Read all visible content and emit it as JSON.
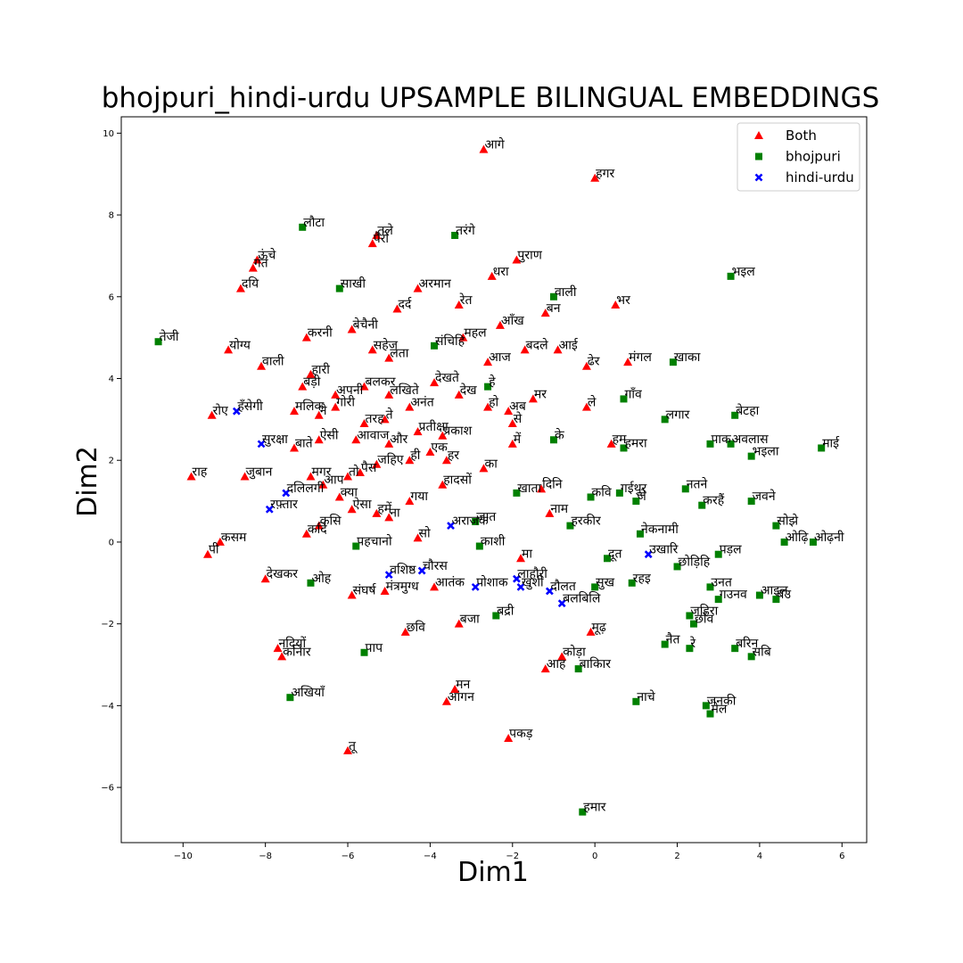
{
  "chart_data": {
    "type": "scatter",
    "title": "bhojpuri_hindi-urdu UPSAMPLE BILINGUAL EMBEDDINGS",
    "xlabel": "Dim1",
    "ylabel": "Dim2",
    "xlim": [
      -11.5,
      6.6
    ],
    "ylim": [
      -7.35,
      10.4
    ],
    "xticks": [
      -10,
      -8,
      -6,
      -4,
      -2,
      0,
      2,
      4,
      6
    ],
    "yticks": [
      -6,
      -4,
      -2,
      0,
      2,
      4,
      6,
      8,
      10
    ],
    "legend_position": "top-right",
    "grid": false,
    "series": [
      {
        "name": "Both",
        "marker": "triangle",
        "color": "#ff0000",
        "points": [
          {
            "x": -2.7,
            "y": 9.6,
            "label": "आगे"
          },
          {
            "x": 0.0,
            "y": 8.9,
            "label": "हगर"
          },
          {
            "x": -5.3,
            "y": 7.5,
            "label": "तले"
          },
          {
            "x": -5.4,
            "y": 7.3,
            "label": "पैरों"
          },
          {
            "x": -8.2,
            "y": 6.9,
            "label": "ऊंचे"
          },
          {
            "x": -8.3,
            "y": 6.7,
            "label": "गंत"
          },
          {
            "x": -8.6,
            "y": 6.2,
            "label": "दयि"
          },
          {
            "x": -4.3,
            "y": 6.2,
            "label": "अरमान"
          },
          {
            "x": -2.5,
            "y": 6.5,
            "label": "धरा"
          },
          {
            "x": -1.9,
            "y": 6.9,
            "label": "पुराण"
          },
          {
            "x": -4.8,
            "y": 5.7,
            "label": "दर्द"
          },
          {
            "x": -3.3,
            "y": 5.8,
            "label": "रेत"
          },
          {
            "x": -1.2,
            "y": 5.6,
            "label": "बन"
          },
          {
            "x": 0.5,
            "y": 5.8,
            "label": "भर"
          },
          {
            "x": -7.0,
            "y": 5.0,
            "label": "करनी"
          },
          {
            "x": -5.9,
            "y": 5.2,
            "label": "बेचैनी"
          },
          {
            "x": -2.3,
            "y": 5.3,
            "label": "आँख"
          },
          {
            "x": -3.2,
            "y": 5.0,
            "label": "महल"
          },
          {
            "x": -8.9,
            "y": 4.7,
            "label": "योग्य"
          },
          {
            "x": -8.1,
            "y": 4.3,
            "label": "वाली"
          },
          {
            "x": -5.4,
            "y": 4.7,
            "label": "सहेज"
          },
          {
            "x": -5.0,
            "y": 4.5,
            "label": "लता"
          },
          {
            "x": -2.6,
            "y": 4.4,
            "label": "आज"
          },
          {
            "x": -1.7,
            "y": 4.7,
            "label": "बदले"
          },
          {
            "x": -0.9,
            "y": 4.7,
            "label": "आई"
          },
          {
            "x": -0.2,
            "y": 4.3,
            "label": "ढेर"
          },
          {
            "x": 0.8,
            "y": 4.4,
            "label": "मंगल"
          },
          {
            "x": -6.9,
            "y": 4.1,
            "label": "हारी"
          },
          {
            "x": -7.1,
            "y": 3.8,
            "label": "बड़ी"
          },
          {
            "x": -5.6,
            "y": 3.8,
            "label": "बलकर"
          },
          {
            "x": -6.3,
            "y": 3.6,
            "label": "अपनी"
          },
          {
            "x": -5.0,
            "y": 3.6,
            "label": "लखिते"
          },
          {
            "x": -3.9,
            "y": 3.9,
            "label": "देखते"
          },
          {
            "x": -3.3,
            "y": 3.6,
            "label": "देख"
          },
          {
            "x": -1.5,
            "y": 3.5,
            "label": "मर"
          },
          {
            "x": -9.3,
            "y": 3.1,
            "label": "रोए"
          },
          {
            "x": -7.3,
            "y": 3.2,
            "label": "मलिक"
          },
          {
            "x": -6.7,
            "y": 3.1,
            "label": "ने"
          },
          {
            "x": -6.3,
            "y": 3.3,
            "label": "गोरी"
          },
          {
            "x": -5.1,
            "y": 3.0,
            "label": "ते"
          },
          {
            "x": -5.6,
            "y": 2.9,
            "label": "तरह"
          },
          {
            "x": -4.5,
            "y": 3.3,
            "label": "अनंत"
          },
          {
            "x": -2.6,
            "y": 3.3,
            "label": "हो"
          },
          {
            "x": -2.1,
            "y": 3.2,
            "label": "अब"
          },
          {
            "x": -2.0,
            "y": 2.9,
            "label": "से"
          },
          {
            "x": -0.2,
            "y": 3.3,
            "label": "ले"
          },
          {
            "x": -6.7,
            "y": 2.5,
            "label": "ऐसी"
          },
          {
            "x": -7.3,
            "y": 2.3,
            "label": "बाते"
          },
          {
            "x": -5.8,
            "y": 2.5,
            "label": "आवाज"
          },
          {
            "x": -5.0,
            "y": 2.4,
            "label": "और"
          },
          {
            "x": -4.3,
            "y": 2.7,
            "label": "प्रतीक्षा"
          },
          {
            "x": -3.7,
            "y": 2.6,
            "label": "प्रकाश"
          },
          {
            "x": -4.0,
            "y": 2.2,
            "label": "एक"
          },
          {
            "x": -2.0,
            "y": 2.4,
            "label": "में"
          },
          {
            "x": 0.4,
            "y": 2.4,
            "label": "हम"
          },
          {
            "x": -5.3,
            "y": 1.9,
            "label": "जहिए"
          },
          {
            "x": -4.5,
            "y": 2.0,
            "label": "ही"
          },
          {
            "x": -3.6,
            "y": 2.0,
            "label": "हर"
          },
          {
            "x": -2.7,
            "y": 1.8,
            "label": "का"
          },
          {
            "x": -9.8,
            "y": 1.6,
            "label": "राह"
          },
          {
            "x": -8.5,
            "y": 1.6,
            "label": "जुबान"
          },
          {
            "x": -6.9,
            "y": 1.6,
            "label": "मगर"
          },
          {
            "x": -6.6,
            "y": 1.4,
            "label": "आप"
          },
          {
            "x": -6.0,
            "y": 1.6,
            "label": "तो"
          },
          {
            "x": -5.7,
            "y": 1.7,
            "label": "पैस"
          },
          {
            "x": -3.7,
            "y": 1.4,
            "label": "हादसों"
          },
          {
            "x": -1.3,
            "y": 1.3,
            "label": "दिनि"
          },
          {
            "x": -6.2,
            "y": 1.1,
            "label": "क्या"
          },
          {
            "x": -5.9,
            "y": 0.8,
            "label": "ऐसा"
          },
          {
            "x": -5.3,
            "y": 0.7,
            "label": "हमें"
          },
          {
            "x": -5.0,
            "y": 0.6,
            "label": "ना"
          },
          {
            "x": -4.5,
            "y": 1.0,
            "label": "गया"
          },
          {
            "x": -1.1,
            "y": 0.7,
            "label": "नाम"
          },
          {
            "x": -9.1,
            "y": 0.0,
            "label": "कसम"
          },
          {
            "x": -9.4,
            "y": -0.3,
            "label": "पी"
          },
          {
            "x": -6.7,
            "y": 0.4,
            "label": "कसि"
          },
          {
            "x": -7.0,
            "y": 0.2,
            "label": "कदि"
          },
          {
            "x": -4.3,
            "y": 0.1,
            "label": "सो"
          },
          {
            "x": -1.8,
            "y": -0.4,
            "label": "मा"
          },
          {
            "x": -8.0,
            "y": -0.9,
            "label": "देखकर"
          },
          {
            "x": -5.9,
            "y": -1.3,
            "label": "संघर्ष"
          },
          {
            "x": -5.1,
            "y": -1.2,
            "label": "मंत्रमुग्ध"
          },
          {
            "x": -3.9,
            "y": -1.1,
            "label": "आतंक"
          },
          {
            "x": -4.6,
            "y": -2.2,
            "label": "छवि"
          },
          {
            "x": -3.3,
            "y": -2.0,
            "label": "बजा"
          },
          {
            "x": -0.1,
            "y": -2.2,
            "label": "मूढ़"
          },
          {
            "x": -7.7,
            "y": -2.6,
            "label": "नदियों"
          },
          {
            "x": -7.6,
            "y": -2.8,
            "label": "कनिार"
          },
          {
            "x": -1.2,
            "y": -3.1,
            "label": "आह"
          },
          {
            "x": -0.8,
            "y": -2.8,
            "label": "कोड़ा"
          },
          {
            "x": -3.4,
            "y": -3.6,
            "label": "मन"
          },
          {
            "x": -3.6,
            "y": -3.9,
            "label": "आंगन"
          },
          {
            "x": -2.1,
            "y": -4.8,
            "label": "पकड़"
          },
          {
            "x": -6.0,
            "y": -5.1,
            "label": "तू"
          }
        ]
      },
      {
        "name": "bhojpuri",
        "marker": "square",
        "color": "#008000",
        "points": [
          {
            "x": -7.1,
            "y": 7.7,
            "label": "लौटा"
          },
          {
            "x": -3.4,
            "y": 7.5,
            "label": "तरंगे"
          },
          {
            "x": -6.2,
            "y": 6.2,
            "label": "साखी"
          },
          {
            "x": -1.0,
            "y": 6.0,
            "label": "वाली"
          },
          {
            "x": 3.3,
            "y": 6.5,
            "label": "भइल"
          },
          {
            "x": -10.6,
            "y": 4.9,
            "label": "तेजी"
          },
          {
            "x": -3.9,
            "y": 4.8,
            "label": "संचिहि"
          },
          {
            "x": 1.9,
            "y": 4.4,
            "label": "खाका"
          },
          {
            "x": -2.6,
            "y": 3.8,
            "label": "हे"
          },
          {
            "x": 0.7,
            "y": 3.5,
            "label": "गाँव"
          },
          {
            "x": 1.7,
            "y": 3.0,
            "label": "लगार"
          },
          {
            "x": 3.4,
            "y": 3.1,
            "label": "बेटहा"
          },
          {
            "x": -1.0,
            "y": 2.5,
            "label": "के"
          },
          {
            "x": 0.7,
            "y": 2.3,
            "label": "हमरा"
          },
          {
            "x": 2.8,
            "y": 2.4,
            "label": "पाक"
          },
          {
            "x": 3.3,
            "y": 2.4,
            "label": "अवलास"
          },
          {
            "x": 3.8,
            "y": 2.1,
            "label": "भइला"
          },
          {
            "x": 5.5,
            "y": 2.3,
            "label": "माई"
          },
          {
            "x": -1.9,
            "y": 1.2,
            "label": "खाता"
          },
          {
            "x": -0.1,
            "y": 1.1,
            "label": "कवि"
          },
          {
            "x": 0.6,
            "y": 1.2,
            "label": "गईथुर"
          },
          {
            "x": 2.2,
            "y": 1.3,
            "label": "नतने"
          },
          {
            "x": 2.6,
            "y": 0.9,
            "label": "करहैं"
          },
          {
            "x": 3.8,
            "y": 1.0,
            "label": "जवने"
          },
          {
            "x": 1.0,
            "y": 1.0,
            "label": "जे"
          },
          {
            "x": -2.9,
            "y": 0.5,
            "label": "जात"
          },
          {
            "x": -0.6,
            "y": 0.4,
            "label": "हरकीर"
          },
          {
            "x": 1.1,
            "y": 0.2,
            "label": "नेकनामी"
          },
          {
            "x": 4.4,
            "y": 0.4,
            "label": "सोझे"
          },
          {
            "x": 4.6,
            "y": 0.0,
            "label": "ओढ़ि"
          },
          {
            "x": 5.3,
            "y": 0.0,
            "label": "ओढ़नी"
          },
          {
            "x": -5.8,
            "y": -0.1,
            "label": "पहचानो"
          },
          {
            "x": -2.8,
            "y": -0.1,
            "label": "काशी"
          },
          {
            "x": 0.3,
            "y": -0.4,
            "label": "दूत"
          },
          {
            "x": 2.0,
            "y": -0.6,
            "label": "छोड़िहि"
          },
          {
            "x": 3.0,
            "y": -0.3,
            "label": "पड़ल"
          },
          {
            "x": -6.9,
            "y": -1.0,
            "label": "ओह"
          },
          {
            "x": 0.0,
            "y": -1.1,
            "label": "सुख"
          },
          {
            "x": 0.9,
            "y": -1.0,
            "label": "रहइ"
          },
          {
            "x": 2.8,
            "y": -1.1,
            "label": "उनत"
          },
          {
            "x": 3.0,
            "y": -1.4,
            "label": "गउनव"
          },
          {
            "x": 4.0,
            "y": -1.3,
            "label": "आइल"
          },
          {
            "x": 4.4,
            "y": -1.4,
            "label": "बउ"
          },
          {
            "x": -2.4,
            "y": -1.8,
            "label": "बद्री"
          },
          {
            "x": 2.3,
            "y": -1.8,
            "label": "जहिरा"
          },
          {
            "x": 2.4,
            "y": -2.0,
            "label": "छाँव"
          },
          {
            "x": -5.6,
            "y": -2.7,
            "label": "पाप"
          },
          {
            "x": 1.7,
            "y": -2.5,
            "label": "नैत"
          },
          {
            "x": 2.3,
            "y": -2.6,
            "label": "रे"
          },
          {
            "x": 3.4,
            "y": -2.6,
            "label": "बरिन"
          },
          {
            "x": 3.8,
            "y": -2.8,
            "label": "सबि"
          },
          {
            "x": -0.4,
            "y": -3.1,
            "label": "बाकिार"
          },
          {
            "x": -7.4,
            "y": -3.8,
            "label": "अखियाँ"
          },
          {
            "x": 1.0,
            "y": -3.9,
            "label": "नाचे"
          },
          {
            "x": 2.7,
            "y": -4.0,
            "label": "जनकी"
          },
          {
            "x": 2.8,
            "y": -4.2,
            "label": "मेल"
          },
          {
            "x": -0.3,
            "y": -6.6,
            "label": "हमार"
          }
        ]
      },
      {
        "name": "hindi-urdu",
        "marker": "x",
        "color": "#0000ff",
        "points": [
          {
            "x": -8.7,
            "y": 3.2,
            "label": "हँसेगी"
          },
          {
            "x": -8.1,
            "y": 2.4,
            "label": "सुरक्षा"
          },
          {
            "x": -7.5,
            "y": 1.2,
            "label": "दलिलगी"
          },
          {
            "x": -7.9,
            "y": 0.8,
            "label": "रफ़्तार"
          },
          {
            "x": -3.5,
            "y": 0.4,
            "label": "अराजक"
          },
          {
            "x": -5.0,
            "y": -0.8,
            "label": "वशिष्ठ"
          },
          {
            "x": -4.2,
            "y": -0.7,
            "label": "चौरस"
          },
          {
            "x": -2.9,
            "y": -1.1,
            "label": "पोशाक"
          },
          {
            "x": -1.9,
            "y": -0.9,
            "label": "लाहौरी"
          },
          {
            "x": -1.8,
            "y": -1.1,
            "label": "खुशी"
          },
          {
            "x": -1.1,
            "y": -1.2,
            "label": "दौलत"
          },
          {
            "x": -0.8,
            "y": -1.5,
            "label": "बलबिलि"
          },
          {
            "x": 1.3,
            "y": -0.3,
            "label": "उखारि"
          }
        ]
      }
    ]
  }
}
